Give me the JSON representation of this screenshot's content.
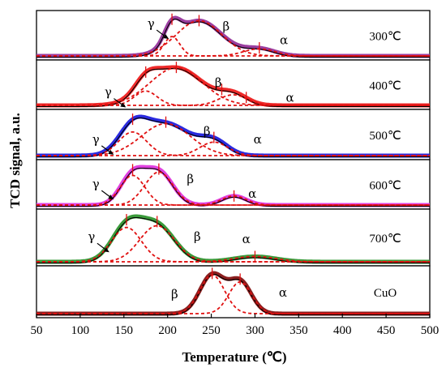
{
  "chart_data": {
    "type": "line",
    "title": "",
    "xlabel": "Temperature (℃)",
    "ylabel": "TCD signal, a.u.",
    "xlim": [
      50,
      500
    ],
    "xticks": [
      50,
      100,
      150,
      200,
      250,
      300,
      350,
      400,
      450,
      500
    ],
    "xtick_labels": [
      "50",
      "100",
      "150",
      "200",
      "250",
      "300",
      "350",
      "400",
      "450",
      "500"
    ],
    "grid": false,
    "legend": "none",
    "panels": [
      {
        "label": "300℃",
        "color": "#9b3ea0",
        "peaks": [
          {
            "name": "γ",
            "center": 205,
            "amplitude": 0.55,
            "width": 9
          },
          {
            "name": "β",
            "center": 236,
            "amplitude": 1.0,
            "width": 26
          },
          {
            "name": "α",
            "center": 305,
            "amplitude": 0.2,
            "width": 18
          }
        ],
        "markers": [
          205,
          236,
          305
        ],
        "annotations": [
          {
            "text": "γ",
            "x": 181,
            "y": 0.85
          },
          {
            "text": "β",
            "x": 267,
            "y": 0.78
          },
          {
            "text": "α",
            "x": 333,
            "y": 0.42
          }
        ]
      },
      {
        "label": "400℃",
        "color": "#ee2a2a",
        "peaks": [
          {
            "name": "γ",
            "center": 175,
            "amplitude": 0.38,
            "width": 13
          },
          {
            "name": "β",
            "center": 210,
            "amplitude": 1.0,
            "width": 30
          },
          {
            "name": "α",
            "center": 275,
            "amplitude": 0.28,
            "width": 16
          }
        ],
        "markers": [
          175,
          210,
          262,
          290
        ],
        "annotations": [
          {
            "text": "γ",
            "x": 132,
            "y": 0.35
          },
          {
            "text": "β",
            "x": 258,
            "y": 0.6
          },
          {
            "text": "α",
            "x": 340,
            "y": 0.2
          }
        ]
      },
      {
        "label": "500℃",
        "color": "#2a2adf",
        "peaks": [
          {
            "name": "γ",
            "center": 160,
            "amplitude": 0.7,
            "width": 16
          },
          {
            "name": "β",
            "center": 198,
            "amplitude": 0.95,
            "width": 28
          },
          {
            "name": "α",
            "center": 253,
            "amplitude": 0.4,
            "width": 16
          }
        ],
        "markers": [
          160,
          198,
          253
        ],
        "annotations": [
          {
            "text": "γ",
            "x": 118,
            "y": 0.42
          },
          {
            "text": "β",
            "x": 245,
            "y": 0.62
          },
          {
            "text": "α",
            "x": 303,
            "y": 0.42
          }
        ]
      },
      {
        "label": "600℃",
        "color": "#e040e0",
        "peaks": [
          {
            "name": "γ",
            "center": 160,
            "amplitude": 0.72,
            "width": 14
          },
          {
            "name": "β",
            "center": 190,
            "amplitude": 0.8,
            "width": 16
          },
          {
            "name": "α",
            "center": 276,
            "amplitude": 0.22,
            "width": 14
          }
        ],
        "markers": [
          160,
          190,
          276
        ],
        "annotations": [
          {
            "text": "γ",
            "x": 118,
            "y": 0.55
          },
          {
            "text": "β",
            "x": 226,
            "y": 0.68
          },
          {
            "text": "α",
            "x": 297,
            "y": 0.3
          }
        ]
      },
      {
        "label": "700℃",
        "color": "#3a9a3a",
        "peaks": [
          {
            "name": "γ",
            "center": 153,
            "amplitude": 0.78,
            "width": 17
          },
          {
            "name": "β",
            "center": 188,
            "amplitude": 0.82,
            "width": 20
          },
          {
            "name": "α",
            "center": 300,
            "amplitude": 0.12,
            "width": 24
          }
        ],
        "markers": [
          153,
          188,
          300
        ],
        "annotations": [
          {
            "text": "γ",
            "x": 113,
            "y": 0.55
          },
          {
            "text": "β",
            "x": 234,
            "y": 0.55
          },
          {
            "text": "α",
            "x": 290,
            "y": 0.5
          }
        ]
      },
      {
        "label": "CuO",
        "color": "#8a1e1e",
        "peaks": [
          {
            "name": "β",
            "center": 251,
            "amplitude": 1.0,
            "width": 14
          },
          {
            "name": "α",
            "center": 283,
            "amplitude": 0.82,
            "width": 13
          }
        ],
        "markers": [
          251,
          283
        ],
        "annotations": [
          {
            "text": "β",
            "x": 208,
            "y": 0.48
          },
          {
            "text": "α",
            "x": 332,
            "y": 0.52
          }
        ]
      }
    ]
  }
}
